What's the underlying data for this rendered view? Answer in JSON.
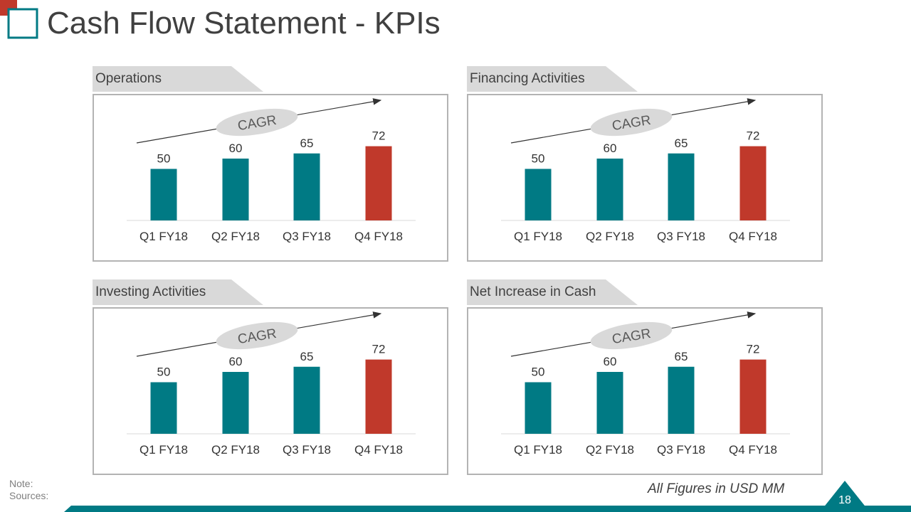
{
  "title": "Cash Flow Statement - KPIs",
  "colors": {
    "teal": "#007a84",
    "red": "#c0392b",
    "title": "#404040",
    "tab": "#d9d9d9"
  },
  "panels": [
    {
      "label": "Operations"
    },
    {
      "label": "Financing Activities"
    },
    {
      "label": "Investing Activities"
    },
    {
      "label": "Net Increase in Cash"
    }
  ],
  "chart_data": [
    {
      "type": "bar",
      "title": "Operations",
      "categories": [
        "Q1 FY18",
        "Q2 FY18",
        "Q3 FY18",
        "Q4 FY18"
      ],
      "values": [
        50,
        60,
        65,
        72
      ],
      "annotation": "CAGR",
      "ylim": [
        0,
        80
      ]
    },
    {
      "type": "bar",
      "title": "Financing Activities",
      "categories": [
        "Q1 FY18",
        "Q2 FY18",
        "Q3 FY18",
        "Q4 FY18"
      ],
      "values": [
        50,
        60,
        65,
        72
      ],
      "annotation": "CAGR",
      "ylim": [
        0,
        80
      ]
    },
    {
      "type": "bar",
      "title": "Investing Activities",
      "categories": [
        "Q1 FY18",
        "Q2 FY18",
        "Q3 FY18",
        "Q4 FY18"
      ],
      "values": [
        50,
        60,
        65,
        72
      ],
      "annotation": "CAGR",
      "ylim": [
        0,
        80
      ]
    },
    {
      "type": "bar",
      "title": "Net Increase in Cash",
      "categories": [
        "Q1 FY18",
        "Q2 FY18",
        "Q3 FY18",
        "Q4 FY18"
      ],
      "values": [
        50,
        60,
        65,
        72
      ],
      "annotation": "CAGR",
      "ylim": [
        0,
        80
      ]
    }
  ],
  "footer": {
    "note": "Note:",
    "sources": "Sources:",
    "units": "All Figures in USD MM",
    "page": "18"
  }
}
